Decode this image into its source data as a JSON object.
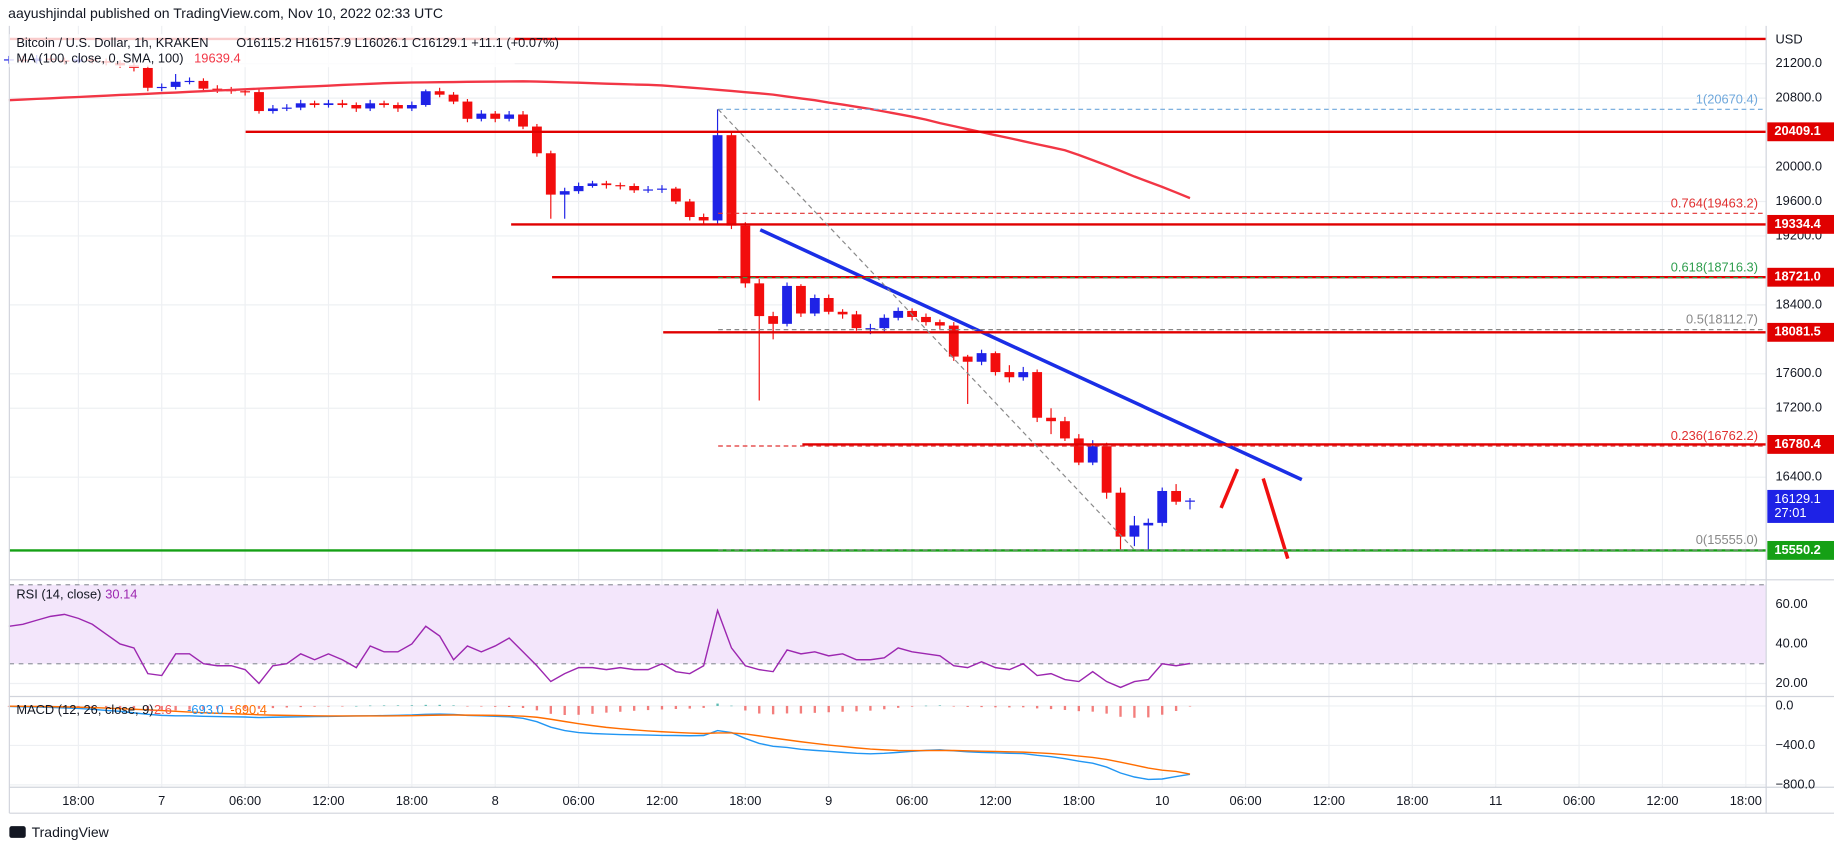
{
  "header": {
    "publisher": "aayushjindal published on TradingView.com, Nov 10, 2022 02:33 UTC",
    "footer": "TradingView"
  },
  "chart_data": {
    "type": "candlestick",
    "title": "Bitcoin / U.S. Dollar, 1h, KRAKEN",
    "ohlc_legend": "O16115.2 H16157.9 L16026.1 C16129.1 +11.1 (+0.07%)",
    "currency": "USD",
    "up_color": "#1e22e6",
    "down_color": "#f20d0d",
    "time_labels": [
      "18:00",
      "7",
      "06:00",
      "12:00",
      "18:00",
      "8",
      "06:00",
      "12:00",
      "18:00",
      "9",
      "06:00",
      "12:00",
      "18:00",
      "10",
      "06:00",
      "12:00",
      "18:00",
      "11",
      "06:00",
      "12:00",
      "18:00"
    ],
    "open": [
      21240,
      21250,
      21230,
      21260,
      21240,
      21220,
      21250,
      21230,
      21210,
      21180,
      21150,
      20920,
      20930,
      20990,
      21000,
      20910,
      20900,
      20880,
      20870,
      20650,
      20680,
      20690,
      20740,
      20720,
      20740,
      20720,
      20680,
      20740,
      20720,
      20680,
      20720,
      20880,
      20840,
      20760,
      20560,
      20620,
      20560,
      20610,
      20470,
      20160,
      19680,
      19720,
      19780,
      19810,
      19790,
      19780,
      19730,
      19740,
      19750,
      19600,
      19420,
      19380,
      20370,
      19320,
      18650,
      18270,
      18180,
      18620,
      18300,
      18480,
      18320,
      18290,
      18130,
      18130,
      18250,
      18330,
      18260,
      18200,
      18160,
      17800,
      17740,
      17840,
      17620,
      17560,
      17620,
      17090,
      17050,
      16850,
      16570,
      16760,
      16220,
      15710,
      15840,
      15870,
      16240,
      16115.2
    ],
    "high": [
      21290,
      21290,
      21300,
      21300,
      21270,
      21290,
      21280,
      21260,
      21240,
      21210,
      21180,
      20970,
      21080,
      21040,
      21030,
      20950,
      20930,
      20910,
      20900,
      20720,
      20730,
      20780,
      20770,
      20780,
      20780,
      20750,
      20780,
      20770,
      20750,
      20760,
      20900,
      20920,
      20870,
      20790,
      20660,
      20650,
      20650,
      20650,
      20500,
      20190,
      19760,
      19820,
      19840,
      19840,
      19820,
      19810,
      19780,
      19790,
      19770,
      19630,
      19460,
      20670.4,
      20400,
      19360,
      18700,
      18320,
      18660,
      18640,
      18520,
      18520,
      18350,
      18330,
      18180,
      18290,
      18370,
      18360,
      18300,
      18230,
      18200,
      17820,
      17880,
      17860,
      17700,
      17680,
      17650,
      17200,
      17100,
      16900,
      16830,
      16800,
      16280,
      15950,
      15920,
      16280,
      16320,
      16157.9
    ],
    "low": [
      21200,
      21210,
      21200,
      21220,
      21190,
      21200,
      21200,
      21180,
      21150,
      21110,
      20880,
      20880,
      20900,
      20960,
      20880,
      20860,
      20850,
      20830,
      20620,
      20620,
      20650,
      20660,
      20690,
      20690,
      20690,
      20640,
      20650,
      20690,
      20640,
      20650,
      20700,
      20810,
      20730,
      20520,
      20530,
      20520,
      20530,
      20440,
      20120,
      19400,
      19400,
      19690,
      19760,
      19750,
      19740,
      19700,
      19700,
      19700,
      19570,
      19380,
      19330,
      19340,
      19280,
      18600,
      17290,
      18000,
      18150,
      18260,
      18270,
      18290,
      18240,
      18100,
      18060,
      18090,
      18220,
      18220,
      18160,
      18120,
      17750,
      17250,
      17700,
      17580,
      17500,
      17520,
      17040,
      16900,
      16820,
      16540,
      16540,
      16150,
      15555,
      15600,
      15560,
      15830,
      16080,
      16026.1
    ],
    "close": [
      21250,
      21230,
      21260,
      21240,
      21220,
      21250,
      21230,
      21210,
      21180,
      21150,
      20920,
      20930,
      20990,
      21000,
      20910,
      20900,
      20880,
      20870,
      20650,
      20680,
      20690,
      20740,
      20720,
      20740,
      20720,
      20680,
      20740,
      20720,
      20680,
      20720,
      20880,
      20840,
      20760,
      20560,
      20620,
      20560,
      20610,
      20470,
      20160,
      19680,
      19720,
      19780,
      19810,
      19790,
      19780,
      19730,
      19740,
      19750,
      19600,
      19420,
      19380,
      20370,
      19320,
      18650,
      18270,
      18180,
      18620,
      18300,
      18480,
      18320,
      18290,
      18130,
      18130,
      18250,
      18330,
      18260,
      18200,
      18160,
      17800,
      17740,
      17840,
      17620,
      17560,
      17620,
      17090,
      17050,
      16850,
      16570,
      16760,
      16220,
      15710,
      15840,
      15870,
      16240,
      16115.2,
      16129.1
    ],
    "ylim": [
      15236,
      21638
    ],
    "yticks": [
      {
        "value": 21200,
        "label": "21200.0"
      },
      {
        "value": 20800,
        "label": "20800.0"
      },
      {
        "value": 20000,
        "label": "20000.0"
      },
      {
        "value": 19600,
        "label": "19600.0"
      },
      {
        "value": 19200,
        "label": "19200.0"
      },
      {
        "value": 18400,
        "label": "18400.0"
      },
      {
        "value": 17600,
        "label": "17600.0"
      },
      {
        "value": 17200,
        "label": "17200.0"
      },
      {
        "value": 16400,
        "label": "16400.0"
      }
    ],
    "grid": true,
    "ma": {
      "label": "MA (100, close, 0, SMA, 100)",
      "color": "#f23645",
      "values": [
        20776,
        20783,
        20791,
        20798,
        20806,
        20813,
        20821,
        20828,
        20836,
        20843,
        20850,
        20858,
        20865,
        20873,
        20880,
        20888,
        20895,
        20902,
        20910,
        20917,
        20924,
        20931,
        20938,
        20945,
        20952,
        20959,
        20966,
        20973,
        20977,
        20981,
        20983,
        20985,
        20987,
        20989,
        20991,
        20993,
        20994,
        20995,
        20992,
        20988,
        20983,
        20978,
        20973,
        20968,
        20963,
        20958,
        20954,
        20947,
        20935,
        20922,
        20910,
        20897,
        20883,
        20869,
        20855,
        20841,
        20818,
        20797,
        20776,
        20749,
        20726,
        20700,
        20673,
        20645,
        20615,
        20585,
        20550,
        20510,
        20475,
        20440,
        20405,
        20370,
        20336,
        20300,
        20265,
        20230,
        20195,
        20140,
        20080,
        20020,
        19955,
        19890,
        19830,
        19770,
        19705,
        19639.4
      ]
    },
    "levels": [
      {
        "price": 21487,
        "color": "#e00000",
        "show_label": false
      },
      {
        "price": 20409.1,
        "color": "#e00000",
        "show_label": true
      },
      {
        "price": 19334.4,
        "color": "#e00000",
        "show_label": true
      },
      {
        "price": {
          "value": 18721,
          "label": "18721.0"
        },
        "color": "#e00000",
        "show_label": true
      },
      {
        "price": 18081.5,
        "color": "#e00000",
        "show_label": true
      },
      {
        "price": 16780.4,
        "color": "#e00000",
        "show_label": true
      },
      {
        "price": 15550.2,
        "color": "#15a015",
        "show_label": true
      }
    ],
    "fib": [
      {
        "value": 20670.4,
        "label": "1(20670.4)",
        "color": "#6fa8dc"
      },
      {
        "value": 19463.2,
        "label": "0.764(19463.2)",
        "color": "#e03030"
      },
      {
        "value": 18716.3,
        "label": "0.618(18716.3)",
        "color": "#2e9e4e"
      },
      {
        "value": 18112.7,
        "label": "0.5(18112.7)",
        "color": "#888888"
      },
      {
        "value": 16762.2,
        "label": "0.236(16762.2)",
        "color": "#e03030"
      },
      {
        "value": 15555,
        "label": "0(15555.0)",
        "color": "#888888"
      }
    ],
    "last_price": 16129.1,
    "countdown": "27:01",
    "rsi": {
      "label": "RSI (14, close)",
      "color": "#9c27b0",
      "band": [
        70,
        30
      ],
      "band_color": "#f3e6fb",
      "ylim": [
        14,
        71.3
      ],
      "yticks": [
        {
          "value": 60,
          "label": "60.00"
        },
        {
          "value": 40,
          "label": "40.00"
        },
        {
          "value": 20,
          "label": "20.00"
        }
      ],
      "values": [
        49,
        50,
        52,
        54,
        55,
        53,
        50,
        45,
        40,
        38,
        25,
        24,
        35,
        35,
        30,
        29,
        29,
        27,
        20,
        29,
        30,
        35,
        32,
        35,
        32,
        28,
        39,
        36,
        36,
        40,
        49,
        44,
        32,
        39,
        36,
        39,
        43,
        36,
        29,
        21,
        25,
        28,
        28,
        27,
        28,
        27,
        27,
        30,
        26,
        25,
        29,
        57,
        38,
        29,
        27,
        26,
        37,
        35,
        36,
        34,
        35,
        32,
        32,
        33,
        38,
        36,
        35,
        34,
        29,
        28,
        31,
        28,
        27,
        30,
        24,
        25,
        22,
        21,
        26,
        21,
        18,
        21,
        22,
        30,
        29,
        30.14
      ]
    },
    "macd": {
      "label": "MACD (12, 26, close, 9)",
      "macd_color": "#2196f3",
      "signal_color": "#ff6d00",
      "hist_color": "#ef5350",
      "hist_up_color": "#26a69a",
      "ylim": [
        -824,
        83.6
      ],
      "yticks": [
        {
          "value": 0,
          "label": "0.0"
        },
        {
          "value": -400,
          "label": "−400.0"
        },
        {
          "value": -800,
          "label": "−800.0"
        }
      ],
      "macd_label": "-693.0",
      "histogram": [
        -3,
        -5,
        -5,
        -8,
        -10,
        -12,
        -18,
        -23,
        -28,
        -37,
        -45,
        -48,
        -45,
        -38,
        -37,
        -34,
        -31,
        -28,
        -29,
        -22,
        -16,
        -12,
        -8,
        -5,
        -2,
        0,
        4,
        5,
        6,
        7,
        11,
        11,
        6,
        -2,
        -6,
        -9,
        -11,
        -21,
        -45,
        -80,
        -92,
        -90,
        -80,
        -68,
        -59,
        -49,
        -42,
        -36,
        -31,
        -27,
        -20,
        24,
        3,
        -46,
        -77,
        -85,
        -76,
        -77,
        -70,
        -64,
        -59,
        -55,
        -48,
        -34,
        -19,
        -7,
        3,
        6,
        -3,
        -10,
        -12,
        -14,
        -15,
        -14,
        -25,
        -32,
        -41,
        -53,
        -58,
        -78,
        -110,
        -120,
        -116,
        -89,
        -51,
        -2.6
      ],
      "macd": [
        -5,
        -8,
        -10,
        -15,
        -20,
        -25,
        -35,
        -45,
        -55,
        -70,
        -85,
        -95,
        -100,
        -100,
        -105,
        -108,
        -110,
        -112,
        -118,
        -115,
        -112,
        -110,
        -108,
        -106,
        -104,
        -102,
        -100,
        -98,
        -96,
        -92,
        -85,
        -82,
        -86,
        -95,
        -100,
        -105,
        -110,
        -125,
        -160,
        -215,
        -250,
        -270,
        -280,
        -285,
        -290,
        -292,
        -295,
        -298,
        -300,
        -302,
        -300,
        -250,
        -270,
        -330,
        -380,
        -410,
        -420,
        -440,
        -450,
        -460,
        -470,
        -480,
        -485,
        -480,
        -470,
        -460,
        -450,
        -445,
        -455,
        -465,
        -470,
        -475,
        -480,
        -482,
        -500,
        -515,
        -535,
        -560,
        -580,
        -620,
        -680,
        -720,
        -745,
        -740,
        -715,
        -693
      ],
      "signal": [
        -2,
        -3,
        -5,
        -7,
        -10,
        -13,
        -17,
        -22,
        -27,
        -33,
        -40,
        -47,
        -55,
        -62,
        -68,
        -74,
        -79,
        -84,
        -89,
        -93,
        -96,
        -98,
        -100,
        -101,
        -102,
        -102,
        -102,
        -101,
        -100,
        -99,
        -96,
        -93,
        -92,
        -93,
        -94,
        -96,
        -99,
        -104,
        -115,
        -135,
        -158,
        -180,
        -200,
        -217,
        -231,
        -243,
        -253,
        -262,
        -269,
        -275,
        -280,
        -274,
        -273,
        -284,
        -303,
        -325,
        -344,
        -363,
        -380,
        -396,
        -411,
        -425,
        -437,
        -446,
        -451,
        -453,
        -453,
        -451,
        -452,
        -455,
        -458,
        -461,
        -465,
        -468,
        -475,
        -483,
        -494,
        -507,
        -522,
        -542,
        -570,
        -600,
        -629,
        -651,
        -664,
        -690.4
      ]
    }
  }
}
